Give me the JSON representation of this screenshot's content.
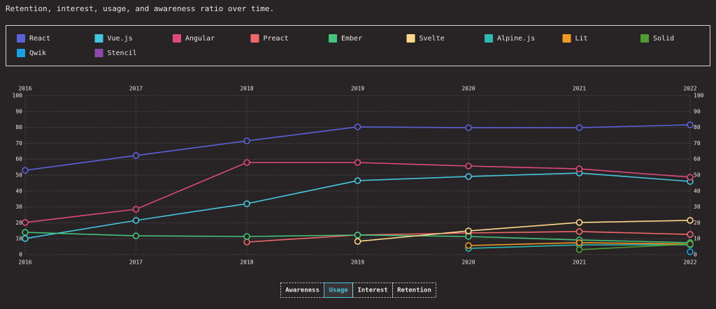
{
  "chart_data": {
    "type": "line",
    "title": "Retention, interest, usage, and awareness ratio over time.",
    "categories": [
      "2016",
      "2017",
      "2018",
      "2019",
      "2020",
      "2021",
      "2022"
    ],
    "series": [
      {
        "name": "React",
        "color": "#5a62d8",
        "values": [
          53,
          62.3,
          71.5,
          80.3,
          79.8,
          79.8,
          81.6
        ]
      },
      {
        "name": "Vue.js",
        "color": "#45c6de",
        "values": [
          10.1,
          21.5,
          32,
          46.5,
          49.1,
          51.3,
          46
        ]
      },
      {
        "name": "Angular",
        "color": "#df4a7e",
        "values": [
          20.2,
          28.5,
          57.9,
          57.9,
          55.7,
          53.9,
          48.7
        ]
      },
      {
        "name": "Preact",
        "color": "#f0686a",
        "values": [
          null,
          null,
          7.9,
          12.3,
          13.6,
          14.5,
          12.7
        ]
      },
      {
        "name": "Ember",
        "color": "#44c47c",
        "values": [
          14,
          11.8,
          11.4,
          12.3,
          11.4,
          9.2,
          7.5
        ]
      },
      {
        "name": "Svelte",
        "color": "#fcd98a",
        "values": [
          null,
          null,
          null,
          8.3,
          14.9,
          20.2,
          21.5
        ]
      },
      {
        "name": "Alpine.js",
        "color": "#2db8b0",
        "values": [
          null,
          null,
          null,
          null,
          3.9,
          6.1,
          6.1
        ]
      },
      {
        "name": "Lit",
        "color": "#f39a26",
        "values": [
          null,
          null,
          null,
          null,
          5.7,
          7.5,
          6.6
        ]
      },
      {
        "name": "Solid",
        "color": "#4e9a34",
        "values": [
          null,
          null,
          null,
          null,
          null,
          3.1,
          6.6
        ]
      },
      {
        "name": "Qwik",
        "color": "#1ba0e6",
        "values": [
          null,
          null,
          null,
          null,
          null,
          null,
          1.8
        ]
      },
      {
        "name": "Stencil",
        "color": "#8e47ad",
        "values": [
          null,
          null,
          null,
          null,
          null,
          null,
          null
        ]
      }
    ],
    "ylim": [
      0,
      100
    ],
    "yticks": [
      0,
      10,
      20,
      30,
      40,
      50,
      60,
      70,
      80,
      90,
      100
    ],
    "grid": true
  },
  "tabs": {
    "labels": [
      "Awareness",
      "Usage",
      "Interest",
      "Retention"
    ],
    "selected": 1
  }
}
